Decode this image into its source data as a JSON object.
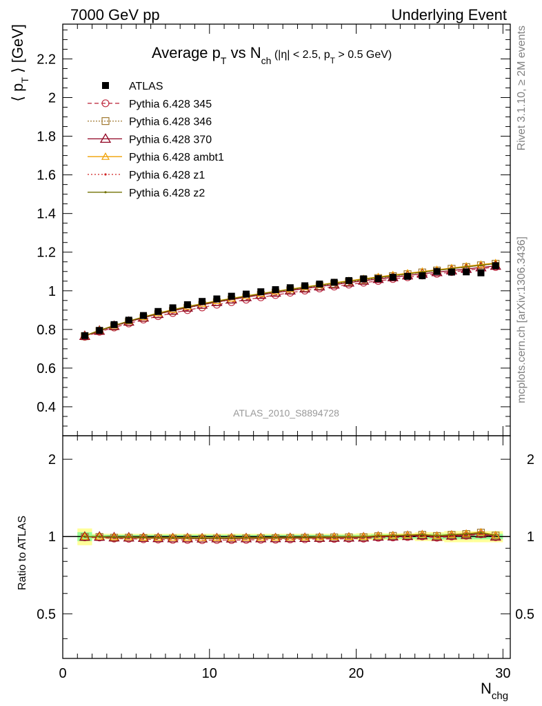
{
  "header": {
    "left": "7000 GeV pp",
    "right": "Underlying Event"
  },
  "side_labels": {
    "rivet": "Rivet 3.1.10, ≥ 2M events",
    "mcplots": "mcplots.cern.ch [arXiv:1306.3436]"
  },
  "analysis_label": "ATLAS_2010_S8894728",
  "title": {
    "p1": "Average p",
    "p1_sub": "T",
    "p2": " vs N",
    "p2_sub": "ch",
    "p3": " (|η| < 2.5, p",
    "p3_sub": "T",
    "p4": " > 0.5 GeV)"
  },
  "ylabel_main": {
    "pre": "⟨ p",
    "sub": "T",
    "post": " ⟩ [GeV]"
  },
  "ylabel_ratio": "Ratio to ATLAS",
  "xlabel": {
    "main": "N",
    "sub": "chg"
  },
  "colors": {
    "atlas": "#000000",
    "p345": "#c03045",
    "p346": "#a07830",
    "p370": "#900020",
    "ambt1": "#f0a000",
    "z1": "#d02020",
    "z2": "#707000",
    "band_yellow": "#ffff99",
    "band_green": "#99ff99"
  },
  "chart_data": {
    "type": "line",
    "x": [
      1.5,
      2.5,
      3.5,
      4.5,
      5.5,
      6.5,
      7.5,
      8.5,
      9.5,
      10.5,
      11.5,
      12.5,
      13.5,
      14.5,
      15.5,
      16.5,
      17.5,
      18.5,
      19.5,
      20.5,
      21.5,
      22.5,
      23.5,
      24.5,
      25.5,
      26.5,
      27.5,
      28.5,
      29.5
    ],
    "xlim": [
      0,
      30.5
    ],
    "xticks": [
      "0",
      "10",
      "20",
      "30"
    ],
    "main_panel": {
      "ylim": [
        0.25,
        2.38
      ],
      "yticks": [
        "0.4",
        "0.6",
        "0.8",
        "1",
        "1.2",
        "1.4",
        "1.6",
        "1.8",
        "2",
        "2.2"
      ],
      "series": [
        {
          "name": "ATLAS",
          "values": [
            0.768,
            0.795,
            0.825,
            0.848,
            0.872,
            0.893,
            0.912,
            0.928,
            0.945,
            0.958,
            0.972,
            0.983,
            0.995,
            1.006,
            1.016,
            1.026,
            1.035,
            1.044,
            1.053,
            1.062,
            1.063,
            1.07,
            1.075,
            1.078,
            1.1,
            1.097,
            1.098,
            1.093,
            1.13
          ]
        },
        {
          "name": "Pythia 6.428 345",
          "values": [
            0.762,
            0.788,
            0.81,
            0.831,
            0.851,
            0.869,
            0.885,
            0.9,
            0.914,
            0.928,
            0.941,
            0.954,
            0.966,
            0.978,
            0.99,
            1.001,
            1.012,
            1.022,
            1.032,
            1.042,
            1.051,
            1.061,
            1.07,
            1.079,
            1.088,
            1.097,
            1.106,
            1.115,
            1.123
          ]
        },
        {
          "name": "Pythia 6.428 346",
          "values": [
            0.765,
            0.792,
            0.816,
            0.839,
            0.86,
            0.879,
            0.896,
            0.912,
            0.927,
            0.941,
            0.954,
            0.967,
            0.979,
            0.991,
            1.003,
            1.014,
            1.025,
            1.036,
            1.046,
            1.056,
            1.066,
            1.076,
            1.086,
            1.095,
            1.105,
            1.114,
            1.123,
            1.132,
            1.14
          ]
        },
        {
          "name": "Pythia 6.428 370",
          "values": [
            0.766,
            0.793,
            0.818,
            0.84,
            0.861,
            0.88,
            0.897,
            0.913,
            0.928,
            0.942,
            0.955,
            0.967,
            0.979,
            0.99,
            1.001,
            1.012,
            1.022,
            1.032,
            1.042,
            1.052,
            1.061,
            1.07,
            1.079,
            1.088,
            1.096,
            1.105,
            1.113,
            1.121,
            1.129
          ]
        },
        {
          "name": "Pythia 6.428 ambt1",
          "values": [
            0.768,
            0.796,
            0.821,
            0.844,
            0.865,
            0.885,
            0.903,
            0.919,
            0.934,
            0.948,
            0.961,
            0.974,
            0.986,
            0.998,
            1.009,
            1.02,
            1.031,
            1.042,
            1.052,
            1.062,
            1.072,
            1.082,
            1.091,
            1.1,
            1.109,
            1.118,
            1.127,
            1.136,
            1.144
          ]
        },
        {
          "name": "Pythia 6.428 z1",
          "values": [
            0.767,
            0.795,
            0.82,
            0.842,
            0.863,
            0.882,
            0.9,
            0.916,
            0.931,
            0.945,
            0.958,
            0.971,
            0.983,
            0.995,
            1.006,
            1.017,
            1.028,
            1.038,
            1.048,
            1.058,
            1.068,
            1.077,
            1.087,
            1.096,
            1.105,
            1.114,
            1.123,
            1.131,
            1.14
          ]
        },
        {
          "name": "Pythia 6.428 z2",
          "values": [
            0.767,
            0.795,
            0.82,
            0.843,
            0.864,
            0.883,
            0.901,
            0.917,
            0.932,
            0.946,
            0.959,
            0.972,
            0.984,
            0.996,
            1.007,
            1.018,
            1.029,
            1.039,
            1.049,
            1.059,
            1.069,
            1.078,
            1.088,
            1.097,
            1.106,
            1.115,
            1.124,
            1.132,
            1.141
          ]
        }
      ]
    },
    "ratio_panel": {
      "ylim": [
        0.335,
        2.47
      ],
      "ylog": true,
      "yticks": [
        "0.5",
        "1",
        "2"
      ],
      "band_yellow_halfwidth": [
        0.075,
        0.025,
        0.025,
        0.025,
        0.025,
        0.025,
        0.025,
        0.025,
        0.025,
        0.025,
        0.025,
        0.025,
        0.025,
        0.025,
        0.025,
        0.025,
        0.025,
        0.025,
        0.025,
        0.03,
        0.03,
        0.03,
        0.03,
        0.04,
        0.04,
        0.05,
        0.05,
        0.05,
        0.05
      ],
      "band_green_halfwidth": [
        0.04,
        0.015,
        0.015,
        0.015,
        0.015,
        0.015,
        0.015,
        0.015,
        0.015,
        0.015,
        0.015,
        0.015,
        0.015,
        0.015,
        0.015,
        0.015,
        0.015,
        0.015,
        0.015,
        0.015,
        0.02,
        0.02,
        0.02,
        0.02,
        0.025,
        0.025,
        0.025,
        0.025,
        0.025
      ]
    },
    "legend_position": "top-left"
  }
}
